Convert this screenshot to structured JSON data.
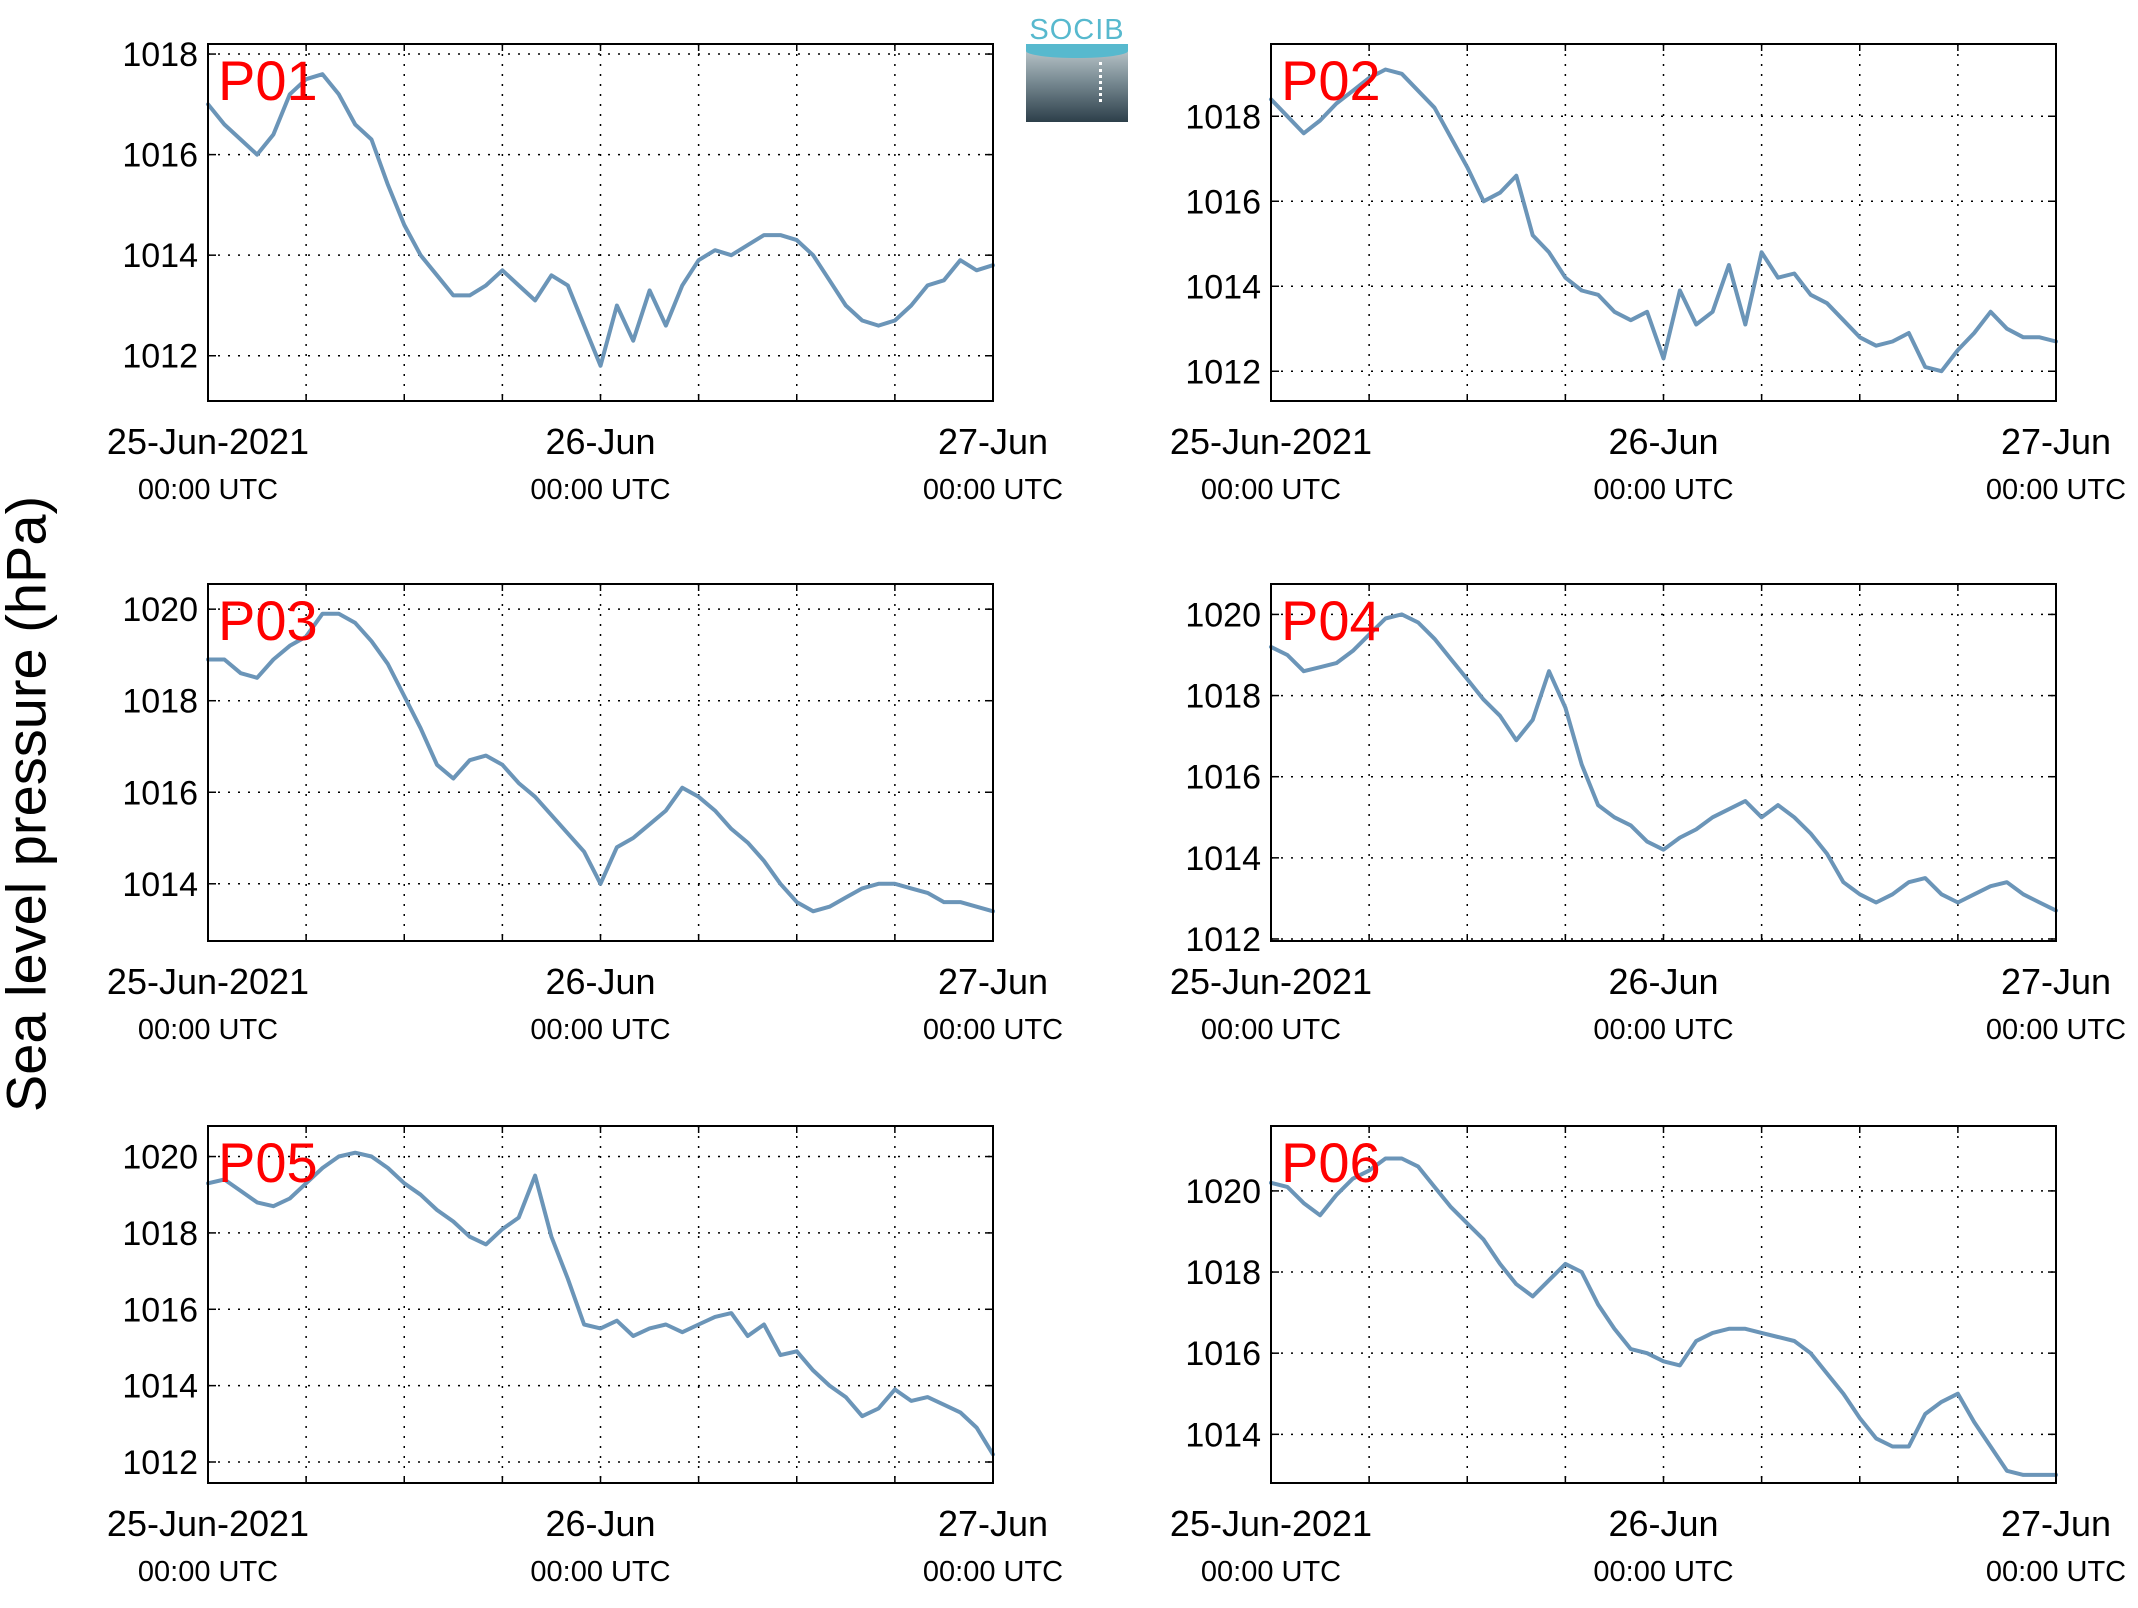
{
  "figure": {
    "ylabel": "Sea level pressure (hPa)",
    "logo_text": "SOCIB",
    "line_color": "#6b95b8",
    "station_label_color": "#ff0000"
  },
  "chart_data": [
    {
      "type": "line",
      "station": "P01",
      "x_unit": "hours since 25-Jun-2021 00:00 UTC",
      "x": [
        0,
        1,
        2,
        3,
        4,
        5,
        6,
        7,
        8,
        9,
        10,
        11,
        12,
        13,
        14,
        15,
        16,
        17,
        18,
        19,
        20,
        21,
        22,
        23,
        24,
        25,
        26,
        27,
        28,
        29,
        30,
        31,
        32,
        33,
        34,
        35,
        36,
        37,
        38,
        39,
        40,
        41,
        42,
        43,
        44,
        45,
        46,
        47,
        48
      ],
      "y": [
        1017.0,
        1016.6,
        1016.3,
        1016.0,
        1016.4,
        1017.2,
        1017.5,
        1017.6,
        1017.2,
        1016.6,
        1016.3,
        1015.4,
        1014.6,
        1014.0,
        1013.6,
        1013.2,
        1013.2,
        1013.4,
        1013.7,
        1013.4,
        1013.1,
        1013.6,
        1013.4,
        1012.6,
        1011.8,
        1013.0,
        1012.3,
        1013.3,
        1012.6,
        1013.4,
        1013.9,
        1014.1,
        1014.0,
        1014.2,
        1014.4,
        1014.4,
        1014.3,
        1014.0,
        1013.5,
        1013.0,
        1012.7,
        1012.6,
        1012.7,
        1013.0,
        1013.4,
        1013.5,
        1013.9,
        1013.7,
        1013.8
      ],
      "ylim": [
        1011.1,
        1018.2
      ],
      "yticks": [
        1012,
        1014,
        1016,
        1018
      ],
      "xlim": [
        0,
        48
      ],
      "xticks_major": [
        0,
        24,
        48
      ],
      "xtick_labels": [
        "25-Jun-2021",
        "26-Jun",
        "27-Jun"
      ],
      "xtick_sublabel": "00:00 UTC",
      "grid": true
    },
    {
      "type": "line",
      "station": "P02",
      "x_unit": "hours since 25-Jun-2021 00:00 UTC",
      "x": [
        0,
        1,
        2,
        3,
        4,
        5,
        6,
        7,
        8,
        9,
        10,
        11,
        12,
        13,
        14,
        15,
        16,
        17,
        18,
        19,
        20,
        21,
        22,
        23,
        24,
        25,
        26,
        27,
        28,
        29,
        30,
        31,
        32,
        33,
        34,
        35,
        36,
        37,
        38,
        39,
        40,
        41,
        42,
        43,
        44,
        45,
        46,
        47,
        48
      ],
      "y": [
        1018.4,
        1018.0,
        1017.6,
        1017.9,
        1018.3,
        1018.6,
        1018.9,
        1019.1,
        1019.0,
        1018.6,
        1018.2,
        1017.5,
        1016.8,
        1016.0,
        1016.2,
        1016.6,
        1015.2,
        1014.8,
        1014.2,
        1013.9,
        1013.8,
        1013.4,
        1013.2,
        1013.4,
        1012.3,
        1013.9,
        1013.1,
        1013.4,
        1014.5,
        1013.1,
        1014.8,
        1014.2,
        1014.3,
        1013.8,
        1013.6,
        1013.2,
        1012.8,
        1012.6,
        1012.7,
        1012.9,
        1012.1,
        1012.0,
        1012.5,
        1012.9,
        1013.4,
        1013.0,
        1012.8,
        1012.8,
        1012.7
      ],
      "ylim": [
        1011.3,
        1019.7
      ],
      "yticks": [
        1012,
        1014,
        1016,
        1018
      ],
      "xlim": [
        0,
        48
      ],
      "xticks_major": [
        0,
        24,
        48
      ],
      "xtick_labels": [
        "25-Jun-2021",
        "26-Jun",
        "27-Jun"
      ],
      "xtick_sublabel": "00:00 UTC",
      "grid": true
    },
    {
      "type": "line",
      "station": "P03",
      "x_unit": "hours since 25-Jun-2021 00:00 UTC",
      "x": [
        0,
        1,
        2,
        3,
        4,
        5,
        6,
        7,
        8,
        9,
        10,
        11,
        12,
        13,
        14,
        15,
        16,
        17,
        18,
        19,
        20,
        21,
        22,
        23,
        24,
        25,
        26,
        27,
        28,
        29,
        30,
        31,
        32,
        33,
        34,
        35,
        36,
        37,
        38,
        39,
        40,
        41,
        42,
        43,
        44,
        45,
        46,
        47,
        48
      ],
      "y": [
        1018.9,
        1018.9,
        1018.6,
        1018.5,
        1018.9,
        1019.2,
        1019.4,
        1019.9,
        1019.9,
        1019.7,
        1019.3,
        1018.8,
        1018.1,
        1017.4,
        1016.6,
        1016.3,
        1016.7,
        1016.8,
        1016.6,
        1016.2,
        1015.9,
        1015.5,
        1015.1,
        1014.7,
        1014.0,
        1014.8,
        1015.0,
        1015.3,
        1015.6,
        1016.1,
        1015.9,
        1015.6,
        1015.2,
        1014.9,
        1014.5,
        1014.0,
        1013.6,
        1013.4,
        1013.5,
        1013.7,
        1013.9,
        1014.0,
        1014.0,
        1013.9,
        1013.8,
        1013.6,
        1013.6,
        1013.5,
        1013.4
      ],
      "ylim": [
        1012.75,
        1020.55
      ],
      "yticks": [
        1014,
        1016,
        1018,
        1020
      ],
      "xlim": [
        0,
        48
      ],
      "xticks_major": [
        0,
        24,
        48
      ],
      "xtick_labels": [
        "25-Jun-2021",
        "26-Jun",
        "27-Jun"
      ],
      "xtick_sublabel": "00:00 UTC",
      "grid": true
    },
    {
      "type": "line",
      "station": "P04",
      "x_unit": "hours since 25-Jun-2021 00:00 UTC",
      "x": [
        0,
        1,
        2,
        3,
        4,
        5,
        6,
        7,
        8,
        9,
        10,
        11,
        12,
        13,
        14,
        15,
        16,
        17,
        18,
        19,
        20,
        21,
        22,
        23,
        24,
        25,
        26,
        27,
        28,
        29,
        30,
        31,
        32,
        33,
        34,
        35,
        36,
        37,
        38,
        39,
        40,
        41,
        42,
        43,
        44,
        45,
        46,
        47,
        48
      ],
      "y": [
        1019.2,
        1019.0,
        1018.6,
        1018.7,
        1018.8,
        1019.1,
        1019.5,
        1019.9,
        1020.0,
        1019.8,
        1019.4,
        1018.9,
        1018.4,
        1017.9,
        1017.5,
        1016.9,
        1017.4,
        1018.6,
        1017.7,
        1016.3,
        1015.3,
        1015.0,
        1014.8,
        1014.4,
        1014.2,
        1014.5,
        1014.7,
        1015.0,
        1015.2,
        1015.4,
        1015.0,
        1015.3,
        1015.0,
        1014.6,
        1014.1,
        1013.4,
        1013.1,
        1012.9,
        1013.1,
        1013.4,
        1013.5,
        1013.1,
        1012.9,
        1013.1,
        1013.3,
        1013.4,
        1013.1,
        1012.9,
        1012.7
      ],
      "ylim": [
        1011.95,
        1020.75
      ],
      "yticks": [
        1012,
        1014,
        1016,
        1018,
        1020
      ],
      "xlim": [
        0,
        48
      ],
      "xticks_major": [
        0,
        24,
        48
      ],
      "xtick_labels": [
        "25-Jun-2021",
        "26-Jun",
        "27-Jun"
      ],
      "xtick_sublabel": "00:00 UTC",
      "grid": true
    },
    {
      "type": "line",
      "station": "P05",
      "x_unit": "hours since 25-Jun-2021 00:00 UTC",
      "x": [
        0,
        1,
        2,
        3,
        4,
        5,
        6,
        7,
        8,
        9,
        10,
        11,
        12,
        13,
        14,
        15,
        16,
        17,
        18,
        19,
        20,
        21,
        22,
        23,
        24,
        25,
        26,
        27,
        28,
        29,
        30,
        31,
        32,
        33,
        34,
        35,
        36,
        37,
        38,
        39,
        40,
        41,
        42,
        43,
        44,
        45,
        46,
        47,
        48
      ],
      "y": [
        1019.3,
        1019.4,
        1019.1,
        1018.8,
        1018.7,
        1018.9,
        1019.3,
        1019.7,
        1020.0,
        1020.1,
        1020.0,
        1019.7,
        1019.3,
        1019.0,
        1018.6,
        1018.3,
        1017.9,
        1017.7,
        1018.1,
        1018.4,
        1019.5,
        1017.9,
        1016.8,
        1015.6,
        1015.5,
        1015.7,
        1015.3,
        1015.5,
        1015.6,
        1015.4,
        1015.6,
        1015.8,
        1015.9,
        1015.3,
        1015.6,
        1014.8,
        1014.9,
        1014.4,
        1014.0,
        1013.7,
        1013.2,
        1013.4,
        1013.9,
        1013.6,
        1013.7,
        1013.5,
        1013.3,
        1012.9,
        1012.2
      ],
      "ylim": [
        1011.45,
        1020.8
      ],
      "yticks": [
        1012,
        1014,
        1016,
        1018,
        1020
      ],
      "xlim": [
        0,
        48
      ],
      "xticks_major": [
        0,
        24,
        48
      ],
      "xtick_labels": [
        "25-Jun-2021",
        "26-Jun",
        "27-Jun"
      ],
      "xtick_sublabel": "00:00 UTC",
      "grid": true
    },
    {
      "type": "line",
      "station": "P06",
      "x_unit": "hours since 25-Jun-2021 00:00 UTC",
      "x": [
        0,
        1,
        2,
        3,
        4,
        5,
        6,
        7,
        8,
        9,
        10,
        11,
        12,
        13,
        14,
        15,
        16,
        17,
        18,
        19,
        20,
        21,
        22,
        23,
        24,
        25,
        26,
        27,
        28,
        29,
        30,
        31,
        32,
        33,
        34,
        35,
        36,
        37,
        38,
        39,
        40,
        41,
        42,
        43,
        44,
        45,
        46,
        47,
        48
      ],
      "y": [
        1020.2,
        1020.1,
        1019.7,
        1019.4,
        1019.9,
        1020.3,
        1020.5,
        1020.8,
        1020.8,
        1020.6,
        1020.1,
        1019.6,
        1019.2,
        1018.8,
        1018.2,
        1017.7,
        1017.4,
        1017.8,
        1018.2,
        1018.0,
        1017.2,
        1016.6,
        1016.1,
        1016.0,
        1015.8,
        1015.7,
        1016.3,
        1016.5,
        1016.6,
        1016.6,
        1016.5,
        1016.4,
        1016.3,
        1016.0,
        1015.5,
        1015.0,
        1014.4,
        1013.9,
        1013.7,
        1013.7,
        1014.5,
        1014.8,
        1015.0,
        1014.3,
        1013.7,
        1013.1,
        1013.0,
        1013.0,
        1013.0
      ],
      "ylim": [
        1012.8,
        1021.6
      ],
      "yticks": [
        1014,
        1016,
        1018,
        1020
      ],
      "xlim": [
        0,
        48
      ],
      "xticks_major": [
        0,
        24,
        48
      ],
      "xtick_labels": [
        "25-Jun-2021",
        "26-Jun",
        "27-Jun"
      ],
      "xtick_sublabel": "00:00 UTC",
      "grid": true
    }
  ]
}
